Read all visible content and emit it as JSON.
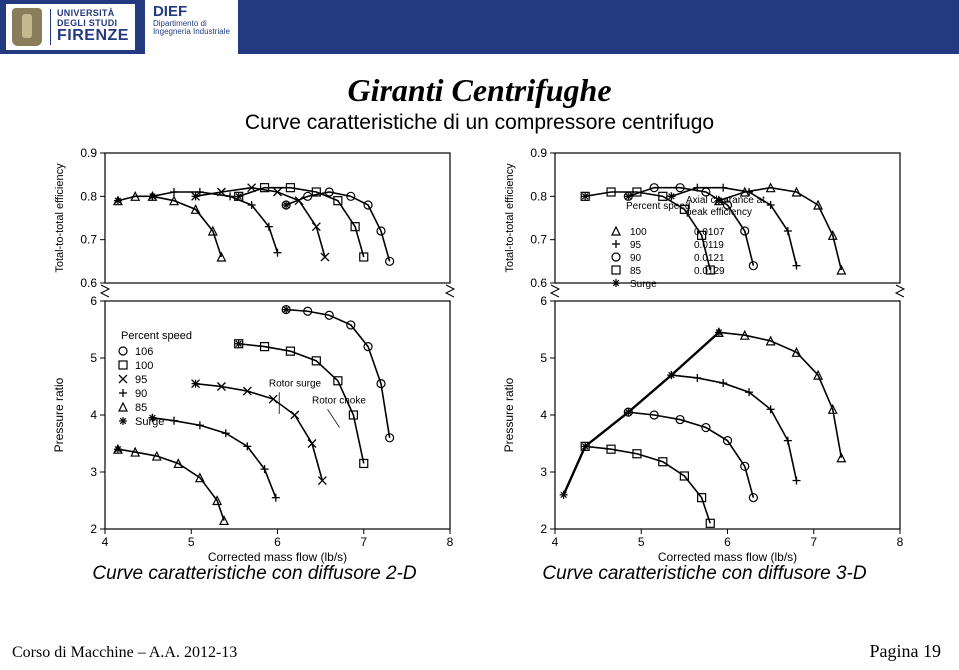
{
  "header": {
    "uni_line1": "UNIVERSITÀ",
    "uni_line2": "DEGLI STUDI",
    "uni_line3": "FIRENZE",
    "dief_title": "DIEF",
    "dief_sub1": "Dipartimento di",
    "dief_sub2": "Ingegneria Industriale"
  },
  "title": "Giranti Centrifughe",
  "subtitle": "Curve caratteristiche di un compressore centrifugo",
  "caption_left": "Curve caratteristiche con diffusore 2-D",
  "caption_right": "Curve caratteristiche con diffusore 3-D",
  "footer_left": "Corso di Macchine – A.A. 2012-13",
  "footer_right_prefix": "Pagina ",
  "footer_page": "19",
  "colors": {
    "axis": "#000000",
    "grid": "#000000",
    "curve": "#000000",
    "bg": "#ffffff"
  },
  "chart_common": {
    "x_label": "Corrected mass flow (lb/s)",
    "x_ticks": [
      4,
      5,
      6,
      7,
      8
    ],
    "top_y_label": "Total-to-total efficiency",
    "top_y_ticks": [
      0.6,
      0.7,
      0.8,
      0.9
    ],
    "bot_y_label": "Pressure ratio",
    "bot_y_ticks": [
      2,
      3,
      4,
      5,
      6
    ],
    "axis_fontsize": 12,
    "label_fontsize": 12,
    "line_width": 1.6
  },
  "left_chart": {
    "legend_title": "Percent speed",
    "legend_items": [
      {
        "marker": "circle",
        "label": "106"
      },
      {
        "marker": "square",
        "label": "100"
      },
      {
        "marker": "x",
        "label": "95"
      },
      {
        "marker": "plus",
        "label": "90"
      },
      {
        "marker": "triangle",
        "label": "85"
      },
      {
        "marker": "star",
        "label": "Surge"
      }
    ],
    "annotations": {
      "rotor_surge": "Rotor surge",
      "rotor_choke": "Rotor choke"
    },
    "top_curves": [
      {
        "marker": "triangle",
        "pts": [
          [
            4.15,
            0.79
          ],
          [
            4.35,
            0.8
          ],
          [
            4.55,
            0.8
          ],
          [
            4.8,
            0.79
          ],
          [
            5.05,
            0.77
          ],
          [
            5.25,
            0.72
          ],
          [
            5.35,
            0.66
          ]
        ]
      },
      {
        "marker": "plus",
        "pts": [
          [
            4.55,
            0.8
          ],
          [
            4.8,
            0.81
          ],
          [
            5.1,
            0.81
          ],
          [
            5.45,
            0.8
          ],
          [
            5.7,
            0.78
          ],
          [
            5.9,
            0.73
          ],
          [
            6.0,
            0.67
          ]
        ]
      },
      {
        "marker": "x",
        "pts": [
          [
            5.05,
            0.8
          ],
          [
            5.35,
            0.81
          ],
          [
            5.7,
            0.82
          ],
          [
            6.0,
            0.81
          ],
          [
            6.25,
            0.79
          ],
          [
            6.45,
            0.73
          ],
          [
            6.55,
            0.66
          ]
        ]
      },
      {
        "marker": "square",
        "pts": [
          [
            5.55,
            0.8
          ],
          [
            5.85,
            0.82
          ],
          [
            6.15,
            0.82
          ],
          [
            6.45,
            0.81
          ],
          [
            6.7,
            0.79
          ],
          [
            6.9,
            0.73
          ],
          [
            7.0,
            0.66
          ]
        ]
      },
      {
        "marker": "circle",
        "pts": [
          [
            6.1,
            0.78
          ],
          [
            6.35,
            0.8
          ],
          [
            6.6,
            0.81
          ],
          [
            6.85,
            0.8
          ],
          [
            7.05,
            0.78
          ],
          [
            7.2,
            0.72
          ],
          [
            7.3,
            0.65
          ]
        ]
      }
    ],
    "bot_curves": [
      {
        "marker": "triangle",
        "pts": [
          [
            4.15,
            3.4
          ],
          [
            4.35,
            3.35
          ],
          [
            4.6,
            3.28
          ],
          [
            4.85,
            3.15
          ],
          [
            5.1,
            2.9
          ],
          [
            5.3,
            2.5
          ],
          [
            5.38,
            2.15
          ]
        ]
      },
      {
        "marker": "plus",
        "pts": [
          [
            4.55,
            3.95
          ],
          [
            4.8,
            3.9
          ],
          [
            5.1,
            3.82
          ],
          [
            5.4,
            3.68
          ],
          [
            5.65,
            3.45
          ],
          [
            5.85,
            3.05
          ],
          [
            5.98,
            2.55
          ]
        ]
      },
      {
        "marker": "x",
        "pts": [
          [
            5.05,
            4.55
          ],
          [
            5.35,
            4.5
          ],
          [
            5.65,
            4.42
          ],
          [
            5.95,
            4.28
          ],
          [
            6.2,
            4.0
          ],
          [
            6.4,
            3.5
          ],
          [
            6.52,
            2.85
          ]
        ]
      },
      {
        "marker": "square",
        "pts": [
          [
            5.55,
            5.25
          ],
          [
            5.85,
            5.2
          ],
          [
            6.15,
            5.12
          ],
          [
            6.45,
            4.95
          ],
          [
            6.7,
            4.6
          ],
          [
            6.88,
            4.0
          ],
          [
            7.0,
            3.15
          ]
        ]
      },
      {
        "marker": "circle",
        "pts": [
          [
            6.1,
            5.85
          ],
          [
            6.35,
            5.82
          ],
          [
            6.6,
            5.75
          ],
          [
            6.85,
            5.58
          ],
          [
            7.05,
            5.2
          ],
          [
            7.2,
            4.55
          ],
          [
            7.3,
            3.6
          ]
        ]
      }
    ],
    "surge_points_top": [
      [
        4.15,
        0.79
      ],
      [
        4.55,
        0.8
      ],
      [
        5.05,
        0.8
      ],
      [
        5.55,
        0.8
      ],
      [
        6.1,
        0.78
      ]
    ],
    "surge_points_bot": [
      [
        4.15,
        3.4
      ],
      [
        4.55,
        3.95
      ],
      [
        5.05,
        4.55
      ],
      [
        5.55,
        5.25
      ],
      [
        6.1,
        5.85
      ]
    ]
  },
  "right_chart": {
    "legend_col1_title": "Percent speed",
    "legend_col2_title": "Axial clearance at peak efficiency",
    "legend_items": [
      {
        "marker": "triangle",
        "col1": "100",
        "col2": "0.0107"
      },
      {
        "marker": "plus",
        "col1": "95",
        "col2": "0.0119"
      },
      {
        "marker": "circle",
        "col1": "90",
        "col2": "0.0121"
      },
      {
        "marker": "square",
        "col1": "85",
        "col2": "0.0129"
      },
      {
        "marker": "star",
        "col1": "Surge",
        "col2": ""
      }
    ],
    "top_curves": [
      {
        "marker": "square",
        "pts": [
          [
            4.35,
            0.8
          ],
          [
            4.65,
            0.81
          ],
          [
            4.95,
            0.81
          ],
          [
            5.25,
            0.8
          ],
          [
            5.5,
            0.77
          ],
          [
            5.7,
            0.71
          ],
          [
            5.8,
            0.63
          ]
        ]
      },
      {
        "marker": "circle",
        "pts": [
          [
            4.85,
            0.8
          ],
          [
            5.15,
            0.82
          ],
          [
            5.45,
            0.82
          ],
          [
            5.75,
            0.81
          ],
          [
            6.0,
            0.78
          ],
          [
            6.2,
            0.72
          ],
          [
            6.3,
            0.64
          ]
        ]
      },
      {
        "marker": "plus",
        "pts": [
          [
            5.35,
            0.8
          ],
          [
            5.65,
            0.82
          ],
          [
            5.95,
            0.82
          ],
          [
            6.25,
            0.81
          ],
          [
            6.5,
            0.78
          ],
          [
            6.7,
            0.72
          ],
          [
            6.8,
            0.64
          ]
        ]
      },
      {
        "marker": "triangle",
        "pts": [
          [
            5.9,
            0.79
          ],
          [
            6.2,
            0.81
          ],
          [
            6.5,
            0.82
          ],
          [
            6.8,
            0.81
          ],
          [
            7.05,
            0.78
          ],
          [
            7.22,
            0.71
          ],
          [
            7.32,
            0.63
          ]
        ]
      }
    ],
    "bot_curves": [
      {
        "marker": "square",
        "pts": [
          [
            4.35,
            3.45
          ],
          [
            4.65,
            3.4
          ],
          [
            4.95,
            3.32
          ],
          [
            5.25,
            3.18
          ],
          [
            5.5,
            2.93
          ],
          [
            5.7,
            2.55
          ],
          [
            5.8,
            2.1
          ]
        ]
      },
      {
        "marker": "circle",
        "pts": [
          [
            4.85,
            4.05
          ],
          [
            5.15,
            4.0
          ],
          [
            5.45,
            3.92
          ],
          [
            5.75,
            3.78
          ],
          [
            6.0,
            3.55
          ],
          [
            6.2,
            3.1
          ],
          [
            6.3,
            2.55
          ]
        ]
      },
      {
        "marker": "plus",
        "pts": [
          [
            5.35,
            4.7
          ],
          [
            5.65,
            4.65
          ],
          [
            5.95,
            4.56
          ],
          [
            6.25,
            4.4
          ],
          [
            6.5,
            4.1
          ],
          [
            6.7,
            3.55
          ],
          [
            6.8,
            2.85
          ]
        ]
      },
      {
        "marker": "triangle",
        "pts": [
          [
            5.9,
            5.45
          ],
          [
            6.2,
            5.4
          ],
          [
            6.5,
            5.3
          ],
          [
            6.8,
            5.1
          ],
          [
            7.05,
            4.7
          ],
          [
            7.22,
            4.1
          ],
          [
            7.32,
            3.25
          ]
        ]
      }
    ],
    "surge_line_bot": [
      [
        4.1,
        2.6
      ],
      [
        4.35,
        3.45
      ],
      [
        4.85,
        4.05
      ],
      [
        5.35,
        4.7
      ],
      [
        5.9,
        5.45
      ]
    ],
    "surge_points_top": [
      [
        4.35,
        0.8
      ],
      [
        4.85,
        0.8
      ],
      [
        5.35,
        0.8
      ],
      [
        5.9,
        0.79
      ]
    ]
  }
}
